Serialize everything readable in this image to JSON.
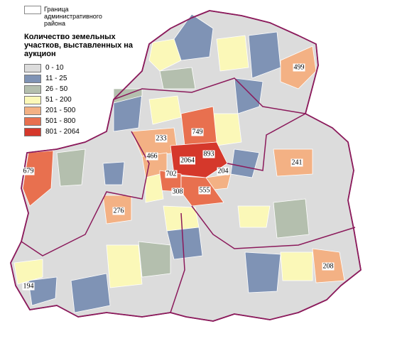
{
  "legend": {
    "boundary": "Граница административного района",
    "title": "Количество земельных участков, выставленных на аукцион",
    "items": [
      {
        "label": "0 - 10",
        "color": "#dcdcdc"
      },
      {
        "label": "11 - 25",
        "color": "#7f93b5"
      },
      {
        "label": "26 - 50",
        "color": "#b4bfae"
      },
      {
        "label": "51 - 200",
        "color": "#fbf8b8"
      },
      {
        "label": "201 - 500",
        "color": "#f3b184"
      },
      {
        "label": "501 - 800",
        "color": "#e8704f"
      },
      {
        "label": "801 - 2064",
        "color": "#d5382b"
      }
    ]
  },
  "labels": [
    "499",
    "749",
    "233",
    "893",
    "466",
    "2064",
    "679",
    "702",
    "204",
    "241",
    "308",
    "555",
    "276",
    "208",
    "194"
  ]
}
